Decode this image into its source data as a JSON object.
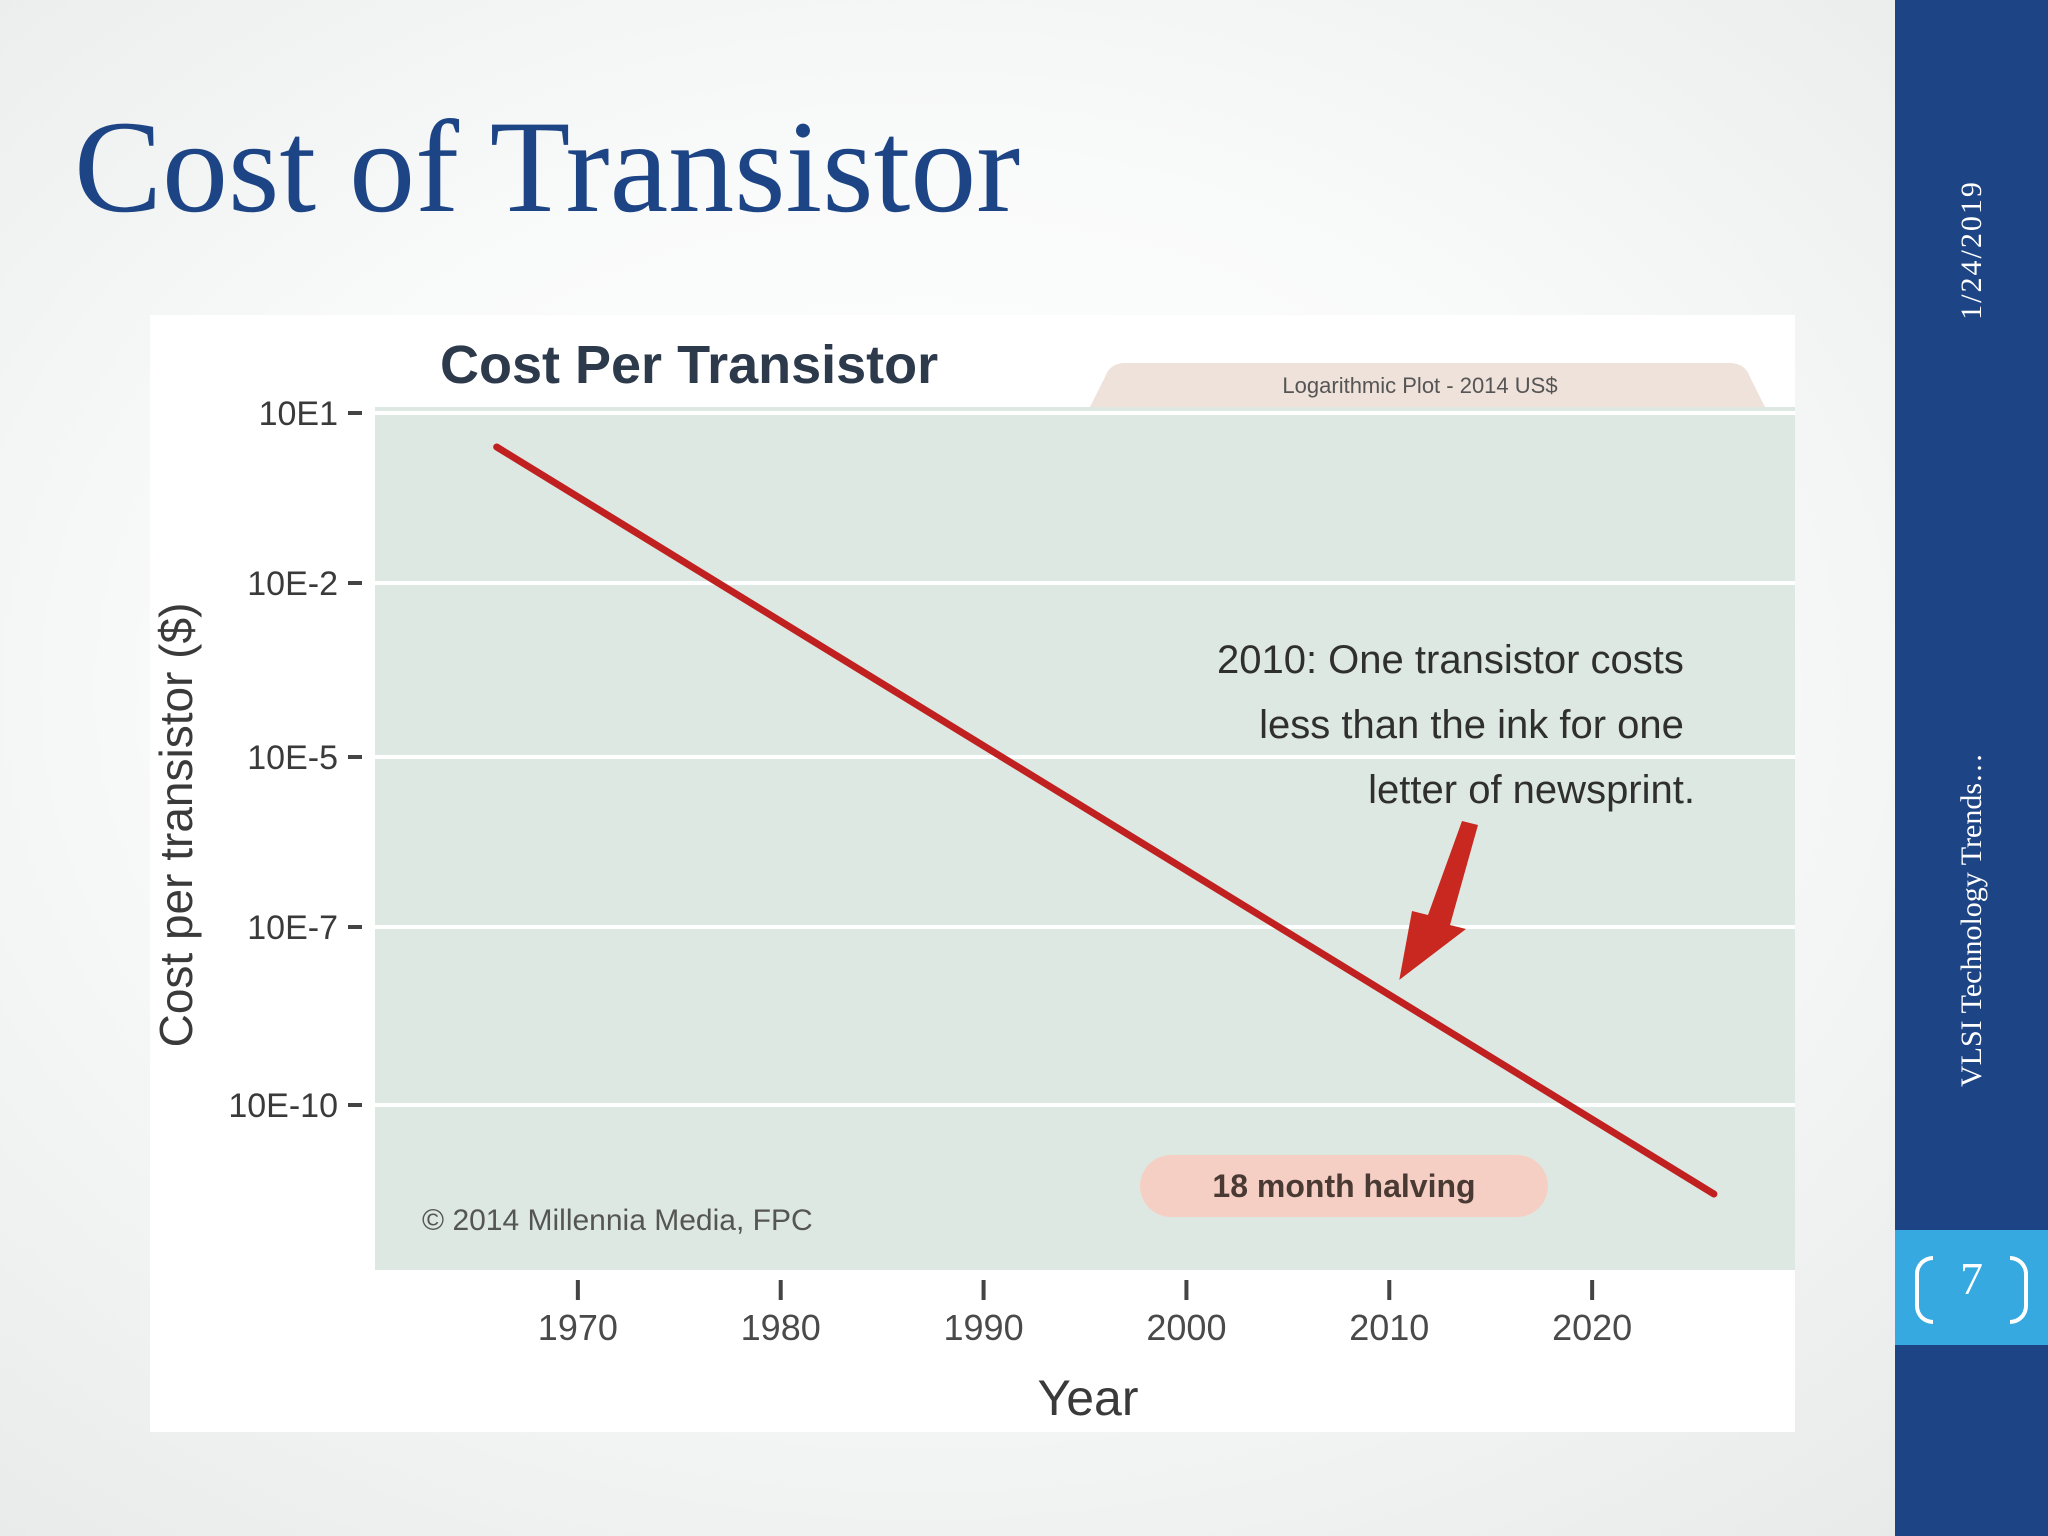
{
  "slide": {
    "title": "Cost of Transistor",
    "date": "1/24/2019",
    "footer": "VLSI Technology Trends…",
    "page_number": "7"
  },
  "colors": {
    "title": "#1d4586",
    "sidebar": "#1d4586",
    "page_box": "#36a9e1",
    "plot_background": "#dde8e2",
    "trend_line": "#c0201f",
    "banner": "#efe2da",
    "halving_pill": "#f6cfc4"
  },
  "chart_data": {
    "type": "line",
    "title": "Cost Per Transistor",
    "subtitle": "Logarithmic Plot - 2014 US$",
    "xlabel": "Year",
    "ylabel": "Cost per transistor ($)",
    "x_ticks": [
      "1970",
      "1980",
      "1990",
      "2000",
      "2010",
      "2020"
    ],
    "y_ticks": [
      "10E1",
      "10E-2",
      "10E-5",
      "10E-7",
      "10E-10"
    ],
    "y_scale": "log",
    "grid": true,
    "xlim": [
      1960,
      2030
    ],
    "series": [
      {
        "x": [
          1966,
          2026
        ],
        "y_tick_position": [
          0.2,
          4.5
        ]
      }
    ],
    "annotations": {
      "note": [
        "2010: One transistor costs",
        "less than the ink for one",
        "letter of newsprint."
      ],
      "halving": "18 month halving",
      "credit": "© 2014 Millennia Media, FPC",
      "arrow_points_to_year": 2010
    }
  }
}
